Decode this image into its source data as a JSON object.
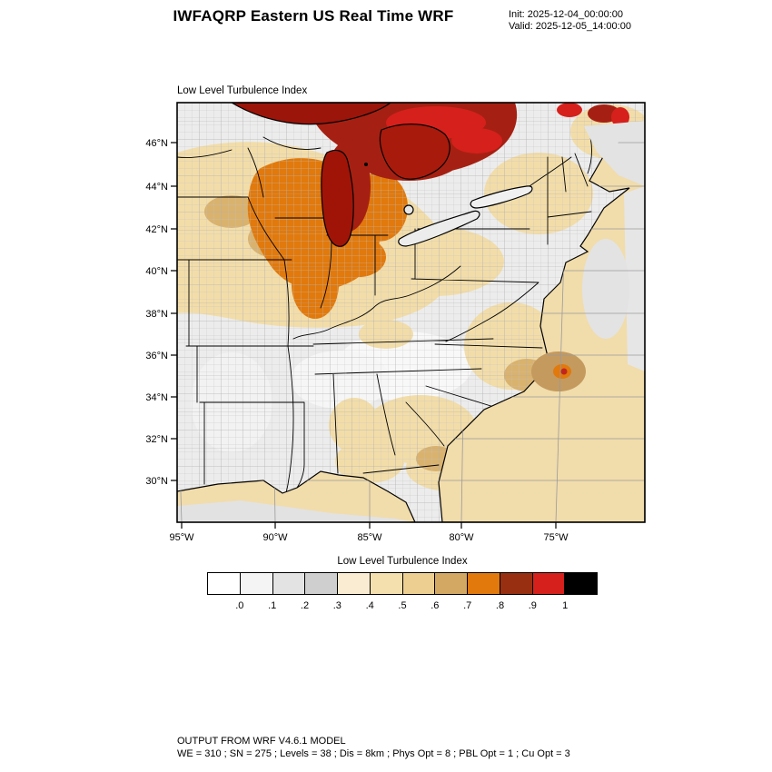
{
  "header": {
    "title": "IWFAQRP Eastern US Real Time WRF",
    "init_label": "Init: 2025-12-04_00:00:00",
    "valid_label": "Valid: 2025-12-05_14:00:00"
  },
  "map": {
    "panel_title": "Low Level Turbulence Index",
    "lat_labels": [
      "46°N",
      "44°N",
      "42°N",
      "40°N",
      "38°N",
      "36°N",
      "34°N",
      "32°N",
      "30°N"
    ],
    "lon_labels": [
      "95°W",
      "90°W",
      "85°W",
      "80°W",
      "75°W"
    ]
  },
  "colorbar": {
    "title": "Low Level Turbulence Index",
    "tick_labels": [
      ".0",
      ".1",
      ".2",
      ".3",
      ".4",
      ".5",
      ".6",
      ".7",
      ".8",
      ".9",
      "1"
    ],
    "colors": [
      "#ffffff",
      "#f4f4f4",
      "#e3e3e3",
      "#cfcfcf",
      "#f9ecd2",
      "#f4dfae",
      "#edd091",
      "#d3a863",
      "#e1790c",
      "#972f10",
      "#d6201c",
      "#000000"
    ]
  },
  "footer": {
    "line1": "OUTPUT FROM WRF V4.6.1 MODEL",
    "line2": "WE = 310 ; SN = 275 ; Levels = 38 ; Dis = 8km ; Phys Opt = 8 ; PBL Opt = 1 ; Cu Opt = 3"
  },
  "chart_data": {
    "type": "heatmap",
    "title": "Low Level Turbulence Index",
    "lat_ticks": [
      30,
      32,
      34,
      36,
      38,
      40,
      42,
      44,
      46
    ],
    "lon_ticks_west": [
      95,
      90,
      85,
      80,
      75
    ],
    "colormap_levels": [
      0,
      0.1,
      0.2,
      0.3,
      0.4,
      0.5,
      0.6,
      0.7,
      0.8,
      0.9,
      1
    ],
    "colormap_colors": [
      "#ffffff",
      "#f4f4f4",
      "#e3e3e3",
      "#cfcfcf",
      "#f9ecd2",
      "#f4dfae",
      "#edd091",
      "#d3a863",
      "#e1790c",
      "#972f10",
      "#d6201c",
      "#000000"
    ],
    "summary": "High turbulence index (0.7-1.0, orange/red) over Wisconsin, Lake Michigan, upper Michigan, Lake Huron and southern Ontario; moderate values (0.4-0.6, tan) across the upper Midwest, Ohio Valley, Northeast, offshore Atlantic and Gulf coast; low values (0-0.3, white/gray) across the Southeast interior and plains."
  }
}
